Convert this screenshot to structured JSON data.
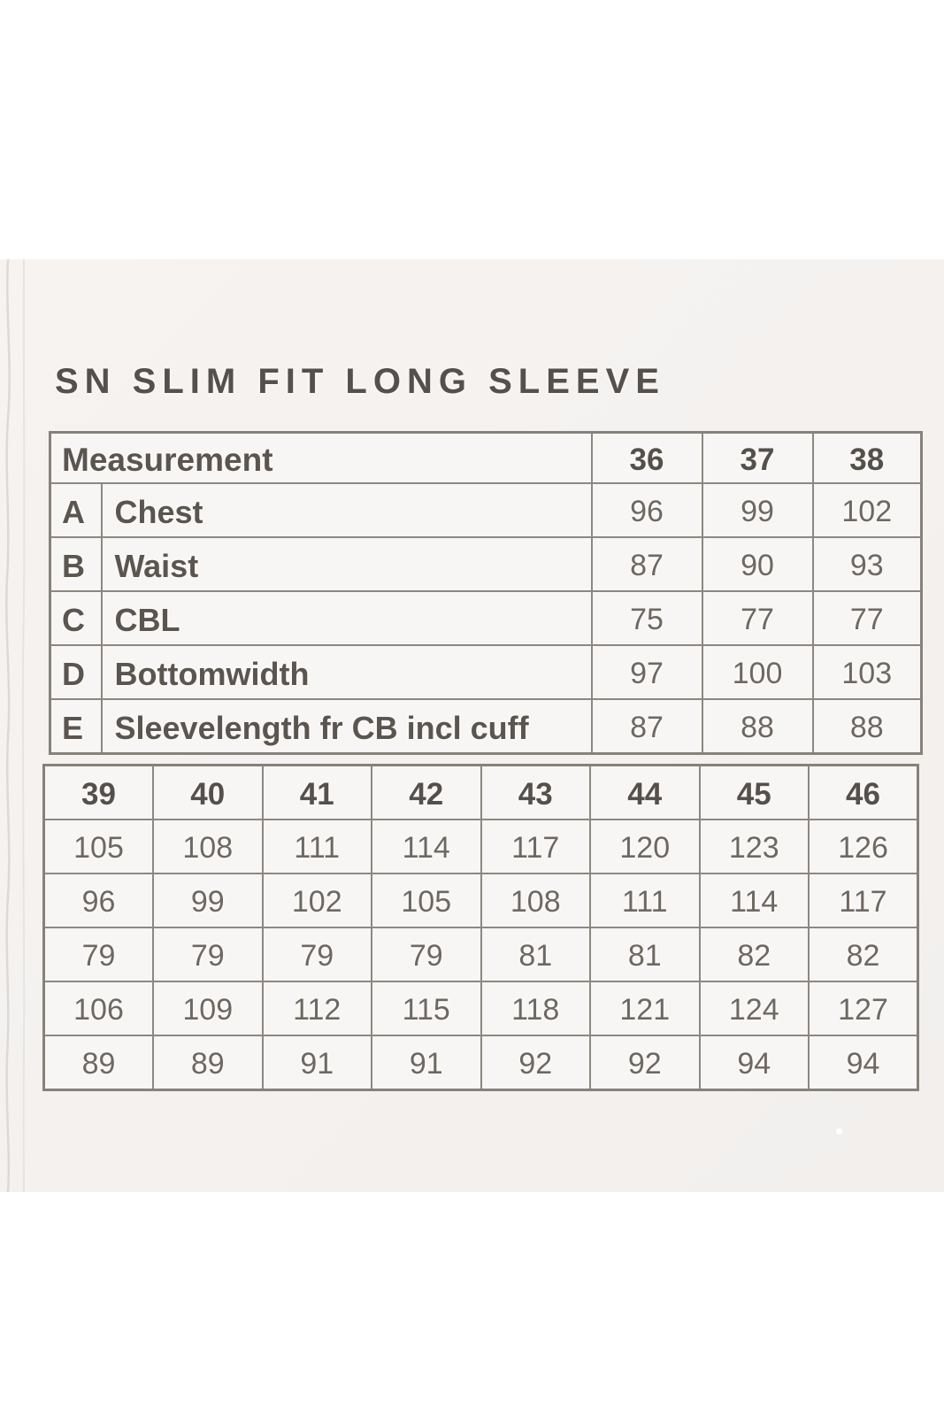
{
  "title": "SN SLIM FIT LONG SLEEVE",
  "size_chart": {
    "header_label": "Measurement",
    "upper": {
      "sizes": [
        "36",
        "37",
        "38"
      ],
      "rows": [
        {
          "letter": "A",
          "label": "Chest",
          "values": [
            "96",
            "99",
            "102"
          ]
        },
        {
          "letter": "B",
          "label": "Waist",
          "values": [
            "87",
            "90",
            "93"
          ]
        },
        {
          "letter": "C",
          "label": "CBL",
          "values": [
            "75",
            "77",
            "77"
          ]
        },
        {
          "letter": "D",
          "label": "Bottomwidth",
          "values": [
            "97",
            "100",
            "103"
          ]
        },
        {
          "letter": "E",
          "label": "Sleevelength fr CB incl cuff",
          "values": [
            "87",
            "88",
            "88"
          ]
        }
      ]
    },
    "lower": {
      "sizes": [
        "39",
        "40",
        "41",
        "42",
        "43",
        "44",
        "45",
        "46"
      ],
      "rows": [
        [
          "105",
          "108",
          "111",
          "114",
          "117",
          "120",
          "123",
          "126"
        ],
        [
          "96",
          "99",
          "102",
          "105",
          "108",
          "111",
          "114",
          "117"
        ],
        [
          "79",
          "79",
          "79",
          "79",
          "81",
          "81",
          "82",
          "82"
        ],
        [
          "106",
          "109",
          "112",
          "115",
          "118",
          "121",
          "124",
          "127"
        ],
        [
          "89",
          "89",
          "91",
          "91",
          "92",
          "92",
          "94",
          "94"
        ]
      ]
    }
  },
  "colors": {
    "background": "#ffffff",
    "paper": "#f4f1ef",
    "cell": "#f8f6f4",
    "border": "#8d8782",
    "text": "#6e6862",
    "heading": "#55504b"
  }
}
